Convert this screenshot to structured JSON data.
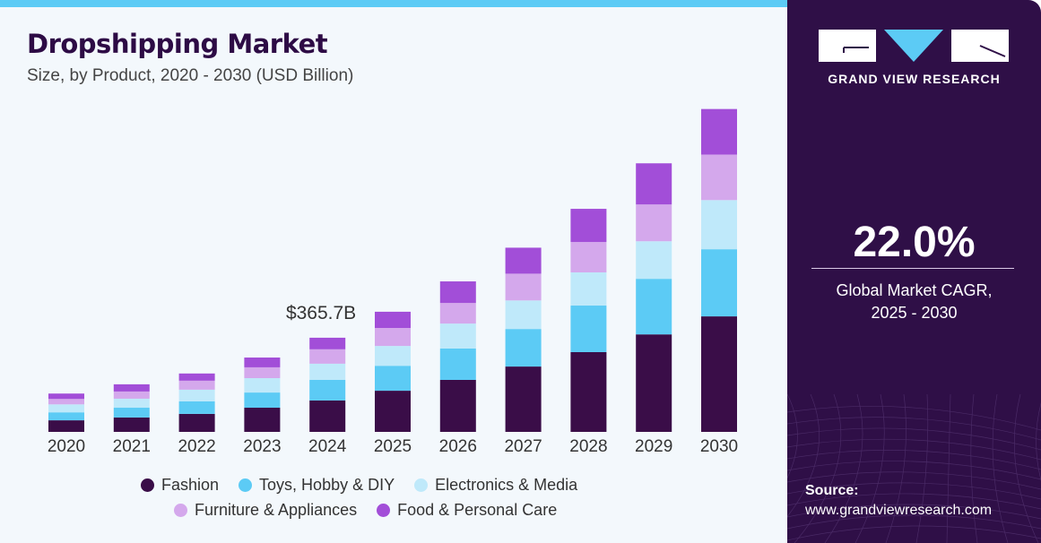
{
  "header": {
    "title": "Dropshipping Market",
    "subtitle": "Size, by Product, 2020 - 2030 (USD Billion)"
  },
  "sidebar": {
    "brand": "GRAND VIEW RESEARCH",
    "cagr_value": "22.0%",
    "cagr_label_1": "Global Market CAGR,",
    "cagr_label_2": "2025 - 2030",
    "source_label": "Source:",
    "source_url": "www.grandviewresearch.com"
  },
  "colors": {
    "accent_bar": "#5ccbf5",
    "panel": "#2f0f47"
  },
  "chart_data": {
    "type": "bar",
    "stacked": true,
    "title": "Dropshipping Market",
    "subtitle": "Size, by Product, 2020 - 2030 (USD Billion)",
    "categories": [
      "2020",
      "2021",
      "2022",
      "2023",
      "2024",
      "2025",
      "2026",
      "2027",
      "2028",
      "2029",
      "2030"
    ],
    "series": [
      {
        "name": "Fashion",
        "color": "#3a0d48",
        "values": [
          45,
          56,
          70,
          94,
          122,
          160,
          202,
          254,
          310,
          379,
          449
        ]
      },
      {
        "name": "Toys, Hobby & DIY",
        "color": "#5ccbf5",
        "values": [
          31,
          38,
          49,
          59,
          80,
          97,
          122,
          146,
          181,
          216,
          261
        ]
      },
      {
        "name": "Electronics & Media",
        "color": "#bfe9fa",
        "values": [
          31,
          35,
          45,
          56,
          63,
          77,
          97,
          111,
          129,
          146,
          191
        ]
      },
      {
        "name": "Furniture & Appliances",
        "color": "#d4a8ec",
        "values": [
          21,
          28,
          35,
          42,
          56,
          70,
          80,
          104,
          118,
          143,
          177
        ]
      },
      {
        "name": "Food & Personal Care",
        "color": "#a24ed8",
        "values": [
          21,
          28,
          28,
          38,
          45,
          63,
          84,
          101,
          129,
          160,
          177
        ]
      }
    ],
    "annotation": {
      "category": "2024",
      "label": "$365.7B"
    },
    "ylim": [
      0,
      1300
    ],
    "grid": false,
    "legend_position": "bottom"
  }
}
